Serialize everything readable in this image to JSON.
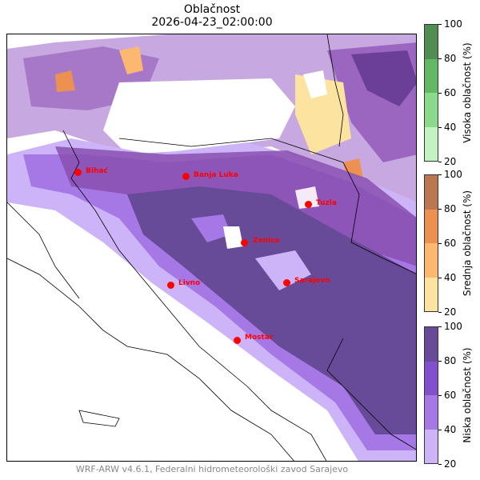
{
  "title": "Oblačnost",
  "subtitle": "2026-04-23_02:00:00",
  "footer": "WRF-ARW v4.6.1, Federalni hidrometeorološki zavod Sarajevo",
  "colorbars": [
    {
      "label": "Visoka oblačnost (%)",
      "ticks": [
        "100",
        "80",
        "60",
        "40",
        "20"
      ],
      "colors": [
        "#c4f2c2",
        "#8bd98a",
        "#63b863",
        "#4f8d51"
      ]
    },
    {
      "label": "Srednja oblačnost (%)",
      "ticks": [
        "100",
        "80",
        "60",
        "40",
        "20"
      ],
      "colors": [
        "#fde3a0",
        "#fcb870",
        "#ec9152",
        "#bc7650"
      ]
    },
    {
      "label": "Niska oblačnost (%)",
      "ticks": [
        "100",
        "80",
        "60",
        "40",
        "20"
      ],
      "colors": [
        "#cdb4f8",
        "#a578e6",
        "#8250cc",
        "#674a98"
      ]
    }
  ],
  "cities": [
    {
      "name": "Bihać"
    },
    {
      "name": "Banja Luka"
    },
    {
      "name": "Tuzla"
    },
    {
      "name": "Zenica"
    },
    {
      "name": "Livno"
    },
    {
      "name": "Sarajevo"
    },
    {
      "name": "Mostar"
    }
  ]
}
